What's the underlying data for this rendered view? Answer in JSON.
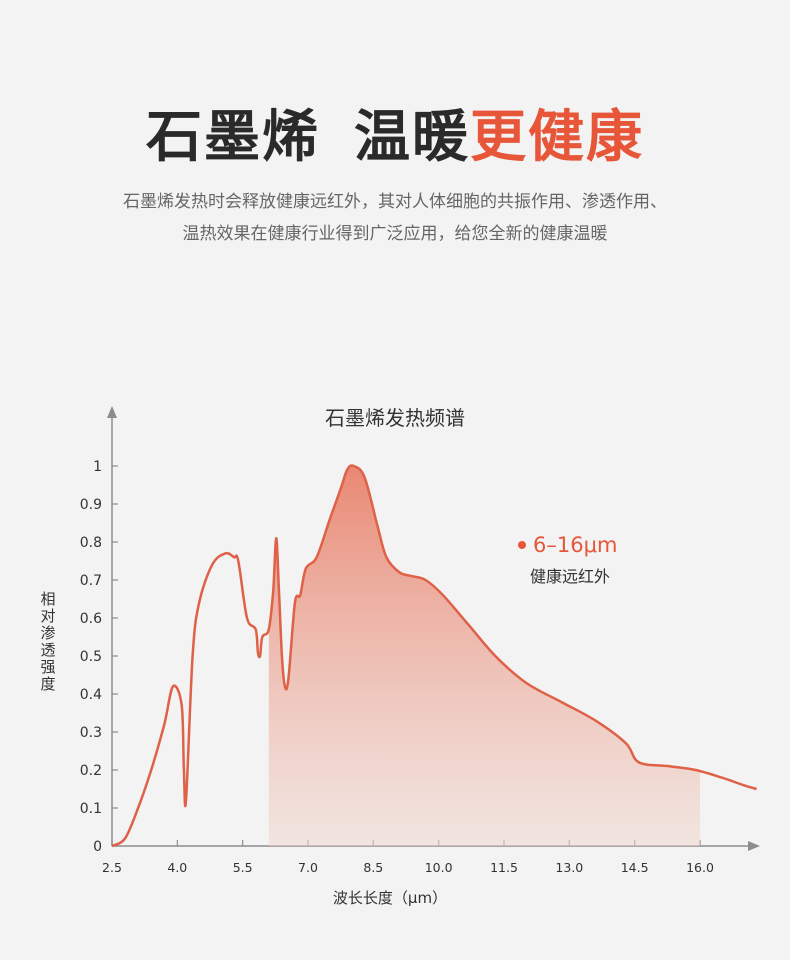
{
  "header": {
    "title_part1": "石墨烯",
    "title_part2": "温暖",
    "title_accent": "更健康",
    "desc_line1": "石墨烯发热时会释放健康远红外，其对人体细胞的共振作用、渗透作用、",
    "desc_line2": "温热效果在健康行业得到广泛应用，给您全新的健康温暖"
  },
  "colors": {
    "accent": "#e8563a",
    "curve": "#de6148",
    "fill_top": "#e9826c",
    "background": "#f3f3f3"
  },
  "chart_data": {
    "type": "area",
    "title": "石墨烯发热频谱",
    "xlabel": "波长长度（μm）",
    "ylabel": "相对渗透强度",
    "x_ticks": [
      2.5,
      4.0,
      5.5,
      7.0,
      8.5,
      10.0,
      11.5,
      13.0,
      14.5,
      16.0
    ],
    "x_tick_labels": [
      "2.5",
      "4.0",
      "5.5",
      "7.0",
      "8.5",
      "10.0",
      "11.5",
      "13.0",
      "14.5",
      "16.0"
    ],
    "y_ticks": [
      0,
      0.1,
      0.2,
      0.3,
      0.4,
      0.5,
      0.6,
      0.7,
      0.8,
      0.9,
      1
    ],
    "y_tick_labels": [
      "0",
      "0.1",
      "0.2",
      "0.3",
      "0.4",
      "0.5",
      "0.6",
      "0.7",
      "0.8",
      "0.9",
      "1"
    ],
    "xlim": [
      2.5,
      17.3
    ],
    "ylim": [
      0,
      1.1
    ],
    "grid": false,
    "series": [
      {
        "x": [
          2.5,
          2.8,
          3.1,
          3.4,
          3.7,
          3.9,
          4.1,
          4.15,
          4.2,
          4.35,
          4.5,
          4.8,
          5.1,
          5.3,
          5.4,
          5.6,
          5.8,
          5.85,
          5.9,
          5.95,
          6.1,
          6.2,
          6.27,
          6.33,
          6.4,
          6.47,
          6.55,
          6.7,
          6.82,
          6.95,
          7.2,
          7.5,
          7.75,
          7.9,
          8.05,
          8.3,
          8.6,
          8.8,
          9.1,
          9.4,
          9.7,
          10.1,
          10.7,
          11.3,
          12.0,
          12.8,
          13.6,
          14.3,
          14.6,
          15.3,
          15.9,
          16.5,
          17.0,
          17.3
        ],
        "y": [
          0,
          0.02,
          0.1,
          0.2,
          0.32,
          0.42,
          0.37,
          0.2,
          0.12,
          0.5,
          0.64,
          0.74,
          0.77,
          0.76,
          0.75,
          0.6,
          0.57,
          0.51,
          0.5,
          0.55,
          0.57,
          0.67,
          0.81,
          0.68,
          0.5,
          0.42,
          0.44,
          0.64,
          0.66,
          0.73,
          0.76,
          0.86,
          0.94,
          0.99,
          1.0,
          0.97,
          0.84,
          0.76,
          0.72,
          0.71,
          0.7,
          0.66,
          0.58,
          0.5,
          0.43,
          0.38,
          0.33,
          0.27,
          0.22,
          0.21,
          0.2,
          0.18,
          0.16,
          0.15
        ]
      }
    ],
    "shaded_range": [
      6.1,
      16.0
    ],
    "annotation": {
      "range_label": "6–16μm",
      "name": "健康远红外"
    }
  }
}
